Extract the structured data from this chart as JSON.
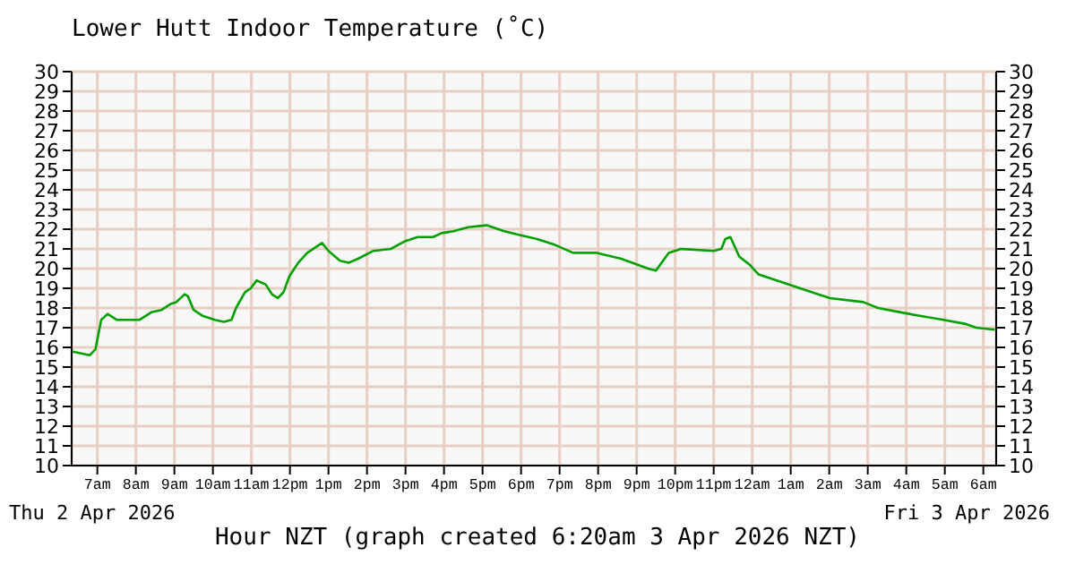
{
  "chart_data": {
    "type": "line",
    "title": "Lower Hutt Indoor Temperature (˚C)",
    "xlabel": "Hour NZT (graph created 6:20am 3 Apr 2026 NZT)",
    "annotations": [
      "Thu 2 Apr 2026",
      "Fri 3 Apr 2026"
    ],
    "xlim": [
      "2026-04-02T06:20",
      "2026-04-03T06:20"
    ],
    "xticks": [
      {
        "value": "2026-04-02T07:00",
        "label": "7am"
      },
      {
        "value": "2026-04-02T08:00",
        "label": "8am"
      },
      {
        "value": "2026-04-02T09:00",
        "label": "9am"
      },
      {
        "value": "2026-04-02T10:00",
        "label": "10am"
      },
      {
        "value": "2026-04-02T11:00",
        "label": "11am"
      },
      {
        "value": "2026-04-02T12:00",
        "label": "12pm"
      },
      {
        "value": "2026-04-02T13:00",
        "label": "1pm"
      },
      {
        "value": "2026-04-02T14:00",
        "label": "2pm"
      },
      {
        "value": "2026-04-02T15:00",
        "label": "3pm"
      },
      {
        "value": "2026-04-02T16:00",
        "label": "4pm"
      },
      {
        "value": "2026-04-02T17:00",
        "label": "5pm"
      },
      {
        "value": "2026-04-02T18:00",
        "label": "6pm"
      },
      {
        "value": "2026-04-02T19:00",
        "label": "7pm"
      },
      {
        "value": "2026-04-02T20:00",
        "label": "8pm"
      },
      {
        "value": "2026-04-02T21:00",
        "label": "9pm"
      },
      {
        "value": "2026-04-02T22:00",
        "label": "10pm"
      },
      {
        "value": "2026-04-02T23:00",
        "label": "11pm"
      },
      {
        "value": "2026-04-03T00:00",
        "label": "12am"
      },
      {
        "value": "2026-04-03T01:00",
        "label": "1am"
      },
      {
        "value": "2026-04-03T02:00",
        "label": "2am"
      },
      {
        "value": "2026-04-03T03:00",
        "label": "3am"
      },
      {
        "value": "2026-04-03T04:00",
        "label": "4am"
      },
      {
        "value": "2026-04-03T05:00",
        "label": "5am"
      },
      {
        "value": "2026-04-03T06:00",
        "label": "6am"
      }
    ],
    "ylim": [
      10,
      30
    ],
    "yticks": [
      10,
      11,
      12,
      13,
      14,
      15,
      16,
      17,
      18,
      19,
      20,
      21,
      22,
      23,
      24,
      25,
      26,
      27,
      28,
      29,
      30
    ],
    "y2lim": [
      10,
      30
    ],
    "y2ticks": [
      10,
      11,
      12,
      13,
      14,
      15,
      16,
      17,
      18,
      19,
      20,
      21,
      22,
      23,
      24,
      25,
      26,
      27,
      28,
      29,
      30
    ],
    "grid": true,
    "marker": "none",
    "line_style": "solid",
    "series": [
      {
        "color": "#00a000",
        "x": [
          "2026-04-02T06:20",
          "2026-04-02T06:48",
          "2026-04-02T06:57",
          "2026-04-02T07:06",
          "2026-04-02T07:16",
          "2026-04-02T07:30",
          "2026-04-02T08:06",
          "2026-04-02T08:25",
          "2026-04-02T08:40",
          "2026-04-02T08:54",
          "2026-04-02T09:03",
          "2026-04-02T09:16",
          "2026-04-02T09:21",
          "2026-04-02T09:30",
          "2026-04-02T09:44",
          "2026-04-02T10:03",
          "2026-04-02T10:17",
          "2026-04-02T10:29",
          "2026-04-02T10:36",
          "2026-04-02T10:50",
          "2026-04-02T10:59",
          "2026-04-02T11:08",
          "2026-04-02T11:22",
          "2026-04-02T11:32",
          "2026-04-02T11:41",
          "2026-04-02T11:50",
          "2026-04-02T11:59",
          "2026-04-02T12:13",
          "2026-04-02T12:27",
          "2026-04-02T12:50",
          "2026-04-02T13:00",
          "2026-04-02T13:18",
          "2026-04-02T13:32",
          "2026-04-02T13:46",
          "2026-04-02T14:10",
          "2026-04-02T14:37",
          "2026-04-02T15:00",
          "2026-04-02T15:19",
          "2026-04-02T15:43",
          "2026-04-02T15:56",
          "2026-04-02T16:15",
          "2026-04-02T16:38",
          "2026-04-02T17:06",
          "2026-04-02T17:34",
          "2026-04-02T17:58",
          "2026-04-02T18:25",
          "2026-04-02T18:53",
          "2026-04-02T19:21",
          "2026-04-02T19:58",
          "2026-04-02T20:36",
          "2026-04-02T21:18",
          "2026-04-02T21:30",
          "2026-04-02T21:50",
          "2026-04-02T22:09",
          "2026-04-02T23:00",
          "2026-04-02T23:12",
          "2026-04-02T23:18",
          "2026-04-02T23:26",
          "2026-04-02T23:40",
          "2026-04-02T23:56",
          "2026-04-03T00:10",
          "2026-04-03T00:56",
          "2026-04-03T01:24",
          "2026-04-03T02:01",
          "2026-04-03T02:53",
          "2026-04-03T03:16",
          "2026-04-03T03:48",
          "2026-04-03T04:21",
          "2026-04-03T04:58",
          "2026-04-03T05:31",
          "2026-04-03T05:49",
          "2026-04-03T06:18"
        ],
        "values": [
          15.8,
          15.6,
          15.9,
          17.4,
          17.7,
          17.4,
          17.4,
          17.8,
          17.9,
          18.2,
          18.3,
          18.7,
          18.6,
          17.9,
          17.6,
          17.4,
          17.3,
          17.4,
          18.0,
          18.8,
          19.0,
          19.4,
          19.2,
          18.7,
          18.5,
          18.8,
          19.6,
          20.3,
          20.8,
          21.3,
          20.9,
          20.4,
          20.3,
          20.5,
          20.9,
          21.0,
          21.4,
          21.6,
          21.6,
          21.8,
          21.9,
          22.1,
          22.2,
          21.9,
          21.7,
          21.5,
          21.2,
          20.8,
          20.8,
          20.5,
          20.0,
          19.9,
          20.8,
          21.0,
          20.9,
          21.0,
          21.5,
          21.6,
          20.6,
          20.2,
          19.7,
          19.2,
          18.9,
          18.5,
          18.3,
          18.0,
          17.8,
          17.6,
          17.4,
          17.2,
          17.0,
          16.9
        ]
      }
    ]
  }
}
